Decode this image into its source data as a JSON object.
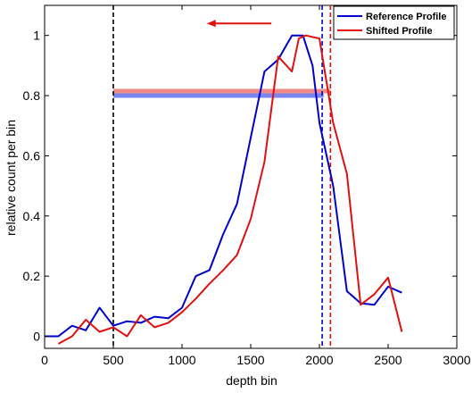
{
  "chart_data": {
    "type": "line",
    "title": "",
    "xlabel": "depth bin",
    "ylabel": "relative count per bin",
    "xlim": [
      0,
      3000
    ],
    "ylim": [
      -0.04,
      1.1
    ],
    "x_ticks": [
      "0",
      "500",
      "1000",
      "1500",
      "2000",
      "2500",
      "3000"
    ],
    "y_ticks": [
      "0",
      "0.2",
      "0.4",
      "0.6",
      "0.8",
      "1"
    ],
    "grid": false,
    "legend_position": "top-right",
    "series": [
      {
        "name": "Reference Profile",
        "color": "#0000cc",
        "x": [
          0,
          100,
          200,
          300,
          400,
          500,
          600,
          700,
          800,
          900,
          1000,
          1100,
          1200,
          1300,
          1400,
          1500,
          1600,
          1700,
          1800,
          1880,
          1950,
          2000,
          2100,
          2200,
          2300,
          2400,
          2500,
          2600
        ],
        "values": [
          0,
          0,
          0.035,
          0.02,
          0.095,
          0.035,
          0.05,
          0.045,
          0.065,
          0.06,
          0.095,
          0.2,
          0.22,
          0.34,
          0.44,
          0.66,
          0.88,
          0.92,
          1.0,
          1.0,
          0.9,
          0.71,
          0.5,
          0.15,
          0.11,
          0.105,
          0.165,
          0.145
        ]
      },
      {
        "name": "Shifted Profile",
        "color": "#e01010",
        "x": [
          100,
          200,
          300,
          400,
          500,
          600,
          700,
          800,
          900,
          1000,
          1100,
          1200,
          1300,
          1400,
          1500,
          1600,
          1700,
          1800,
          1850,
          1900,
          2000,
          2100,
          2200,
          2300,
          2400,
          2500,
          2600
        ],
        "values": [
          -0.025,
          0.0,
          0.055,
          0.015,
          0.03,
          0.0,
          0.07,
          0.03,
          0.045,
          0.08,
          0.125,
          0.175,
          0.22,
          0.27,
          0.39,
          0.58,
          0.93,
          0.88,
          0.99,
          1.0,
          0.99,
          0.71,
          0.54,
          0.105,
          0.14,
          0.195,
          0.015
        ]
      }
    ],
    "reference_lines": [
      {
        "orientation": "vertical",
        "x": 500,
        "color": "#000000",
        "style": "dashed"
      },
      {
        "orientation": "vertical",
        "x": 2020,
        "color": "#0000cc",
        "style": "dashed"
      },
      {
        "orientation": "vertical",
        "x": 2080,
        "color": "#e01010",
        "style": "dashed"
      }
    ],
    "bands": [
      {
        "x_start": 500,
        "x_end": 2030,
        "y": 0.8,
        "color": "#7a86ee"
      },
      {
        "x_start": 500,
        "x_end": 2080,
        "y": 0.815,
        "color": "#f28a8a"
      }
    ],
    "annotations": [
      {
        "type": "arrow",
        "direction": "left",
        "x_from": 1650,
        "x_to": 1180,
        "y": 1.04,
        "color": "#e01010"
      }
    ]
  }
}
